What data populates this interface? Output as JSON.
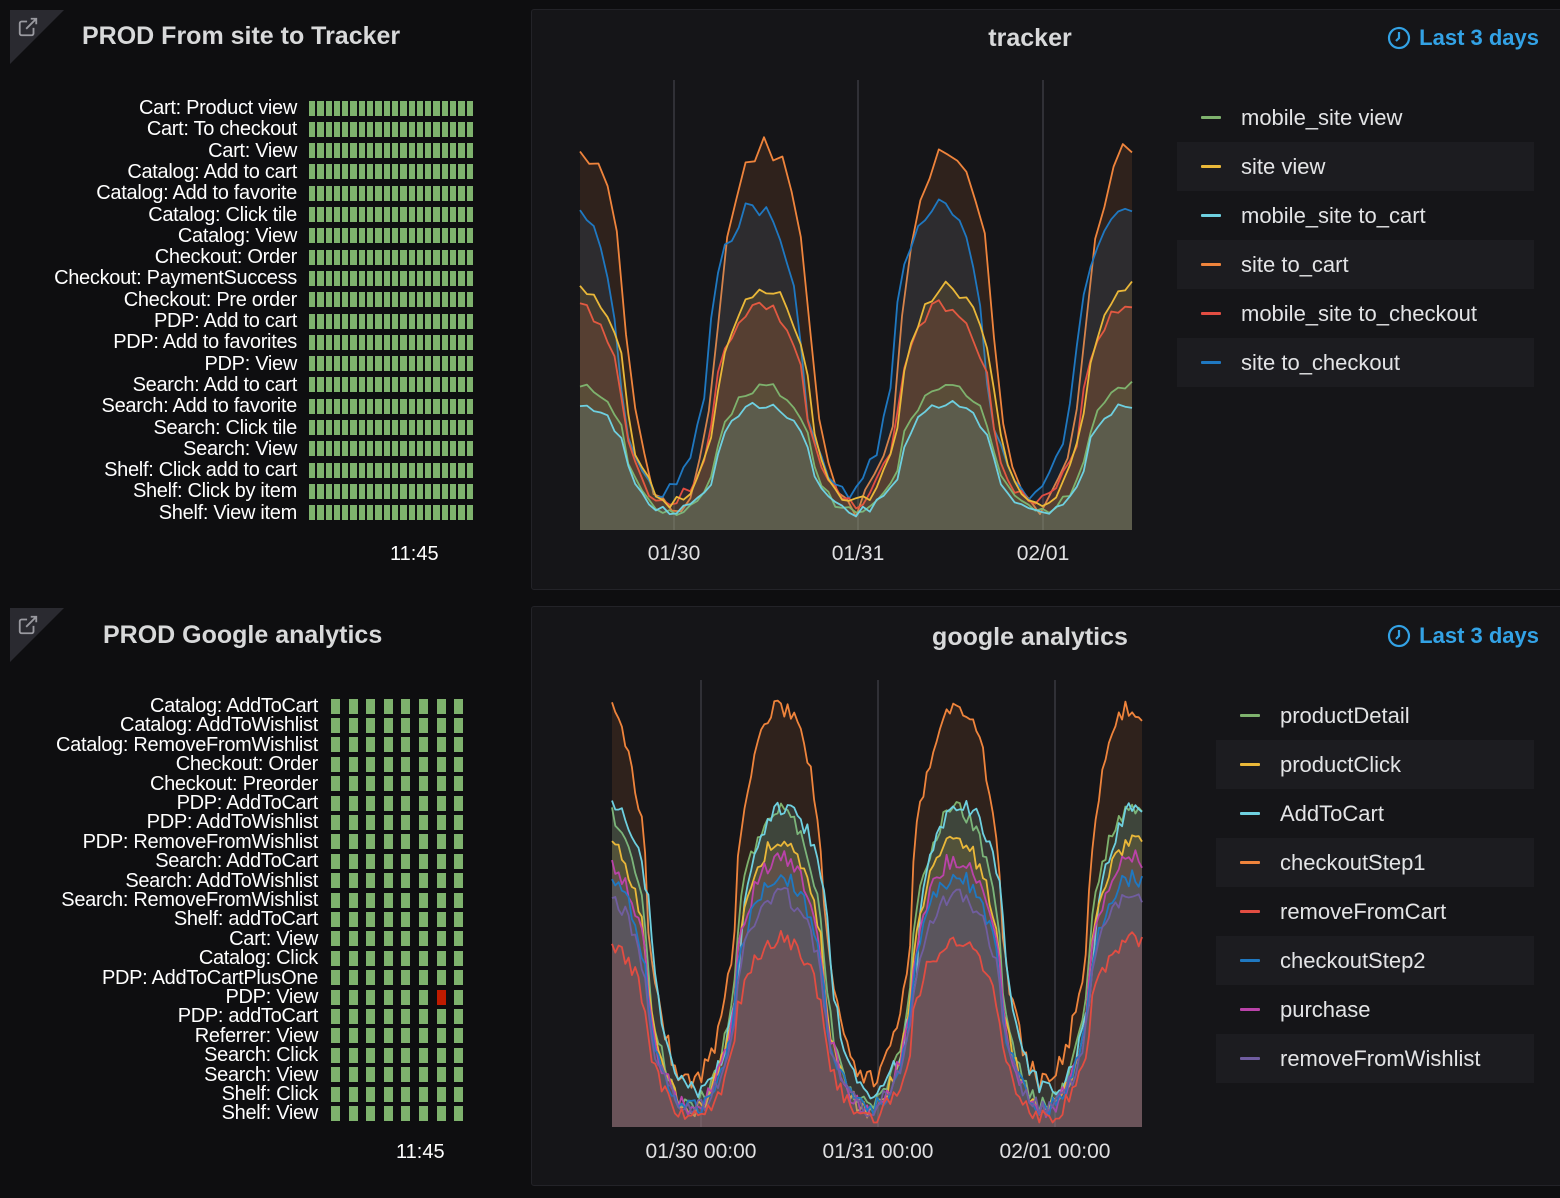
{
  "panels": {
    "tracker_status": {
      "title": "PROD From site to Tracker",
      "rows": [
        "Cart: Product view",
        "Cart: To checkout",
        "Cart: View",
        "Catalog: Add to cart",
        "Catalog: Add to favorite",
        "Catalog: Click tile",
        "Catalog: View",
        "Checkout: Order",
        "Checkout: PaymentSuccess",
        "Checkout: Pre order",
        "PDP: Add to cart",
        "PDP: Add to favorites",
        "PDP: View",
        "Search: Add to cart",
        "Search: Add to favorite",
        "Search: Click tile",
        "Search: View",
        "Shelf: Click add to cart",
        "Shelf: Click by item",
        "Shelf: View item"
      ],
      "time_label": "11:45"
    },
    "tracker_graph": {
      "title": "tracker",
      "time_range": "Last 3 days",
      "legend": [
        {
          "name": "mobile_site view",
          "color": "#7eb26d"
        },
        {
          "name": "site view",
          "color": "#eab839"
        },
        {
          "name": "mobile_site to_cart",
          "color": "#6ed0e0"
        },
        {
          "name": "site to_cart",
          "color": "#ef843c"
        },
        {
          "name": "mobile_site to_checkout",
          "color": "#e24d42"
        },
        {
          "name": "site to_checkout",
          "color": "#1f78c1"
        }
      ],
      "x_ticks": [
        "01/30",
        "01/31",
        "02/01"
      ]
    },
    "ga_status": {
      "title": "PROD Google analytics",
      "rows": [
        "Catalog: AddToCart",
        "Catalog: AddToWishlist",
        "Catalog: RemoveFromWishlist",
        "Checkout: Order",
        "Checkout: Preorder",
        "PDP: AddToCart",
        "PDP: AddToWishlist",
        "PDP: RemoveFromWishlist",
        "Search: AddToCart",
        "Search: AddToWishlist",
        "Search: RemoveFromWishlist",
        "Shelf: addToCart",
        "Cart: View",
        "Catalog: Click",
        "PDP: AddToCartPlusOne",
        "PDP: View",
        "PDP: addToCart",
        "Referrer: View",
        "Search: Click",
        "Search: View",
        "Shelf: Click",
        "Shelf: View"
      ],
      "time_label": "11:45",
      "alert_row": "PDP: View"
    },
    "ga_graph": {
      "title": "google analytics",
      "time_range": "Last 3 days",
      "legend": [
        {
          "name": "productDetail",
          "color": "#7eb26d"
        },
        {
          "name": "productClick",
          "color": "#eab839"
        },
        {
          "name": "AddToCart",
          "color": "#6ed0e0"
        },
        {
          "name": "checkoutStep1",
          "color": "#ef843c"
        },
        {
          "name": "removeFromCart",
          "color": "#e24d42"
        },
        {
          "name": "checkoutStep2",
          "color": "#1f78c1"
        },
        {
          "name": "purchase",
          "color": "#ba43a9"
        },
        {
          "name": "removeFromWishlist",
          "color": "#705da0"
        }
      ],
      "x_ticks": [
        "01/30 00:00",
        "01/31 00:00",
        "02/01 00:00"
      ]
    }
  },
  "colors": {
    "ok": "#7eb26d",
    "alert": "#bf1b00",
    "accent": "#33a2e5"
  }
}
